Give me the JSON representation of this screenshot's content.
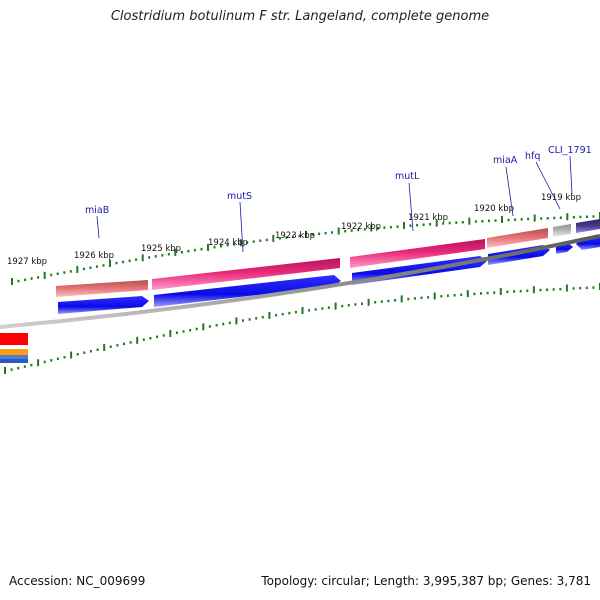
{
  "title": "Clostridium botulinum F str. Langeland, complete genome",
  "footer": {
    "accession": "Accession: NC_009699",
    "summary": "Topology: circular; Length: 3,995,387 bp; Genes: 3,781"
  },
  "kbp_labels": [
    "1927 kbp",
    "1926 kbp",
    "1925 kbp",
    "1924 kbp",
    "1923 kbp",
    "1922 kbp",
    "1921 kbp",
    "1920 kbp",
    "1919 kbp"
  ],
  "gene_labels": [
    "miaB",
    "mutS",
    "mutL",
    "miaA",
    "hfq",
    "CLI_1791"
  ],
  "colors": {
    "backbone": "#808080",
    "tick": "#1f7a1f",
    "cds_blue": "#0a0ae6",
    "mutS_mutL": "#e8287a",
    "miaB_miaA": "#e46f72",
    "hfq_gene": "#b0b0b0",
    "cli_gene": "#4a3a8c"
  }
}
